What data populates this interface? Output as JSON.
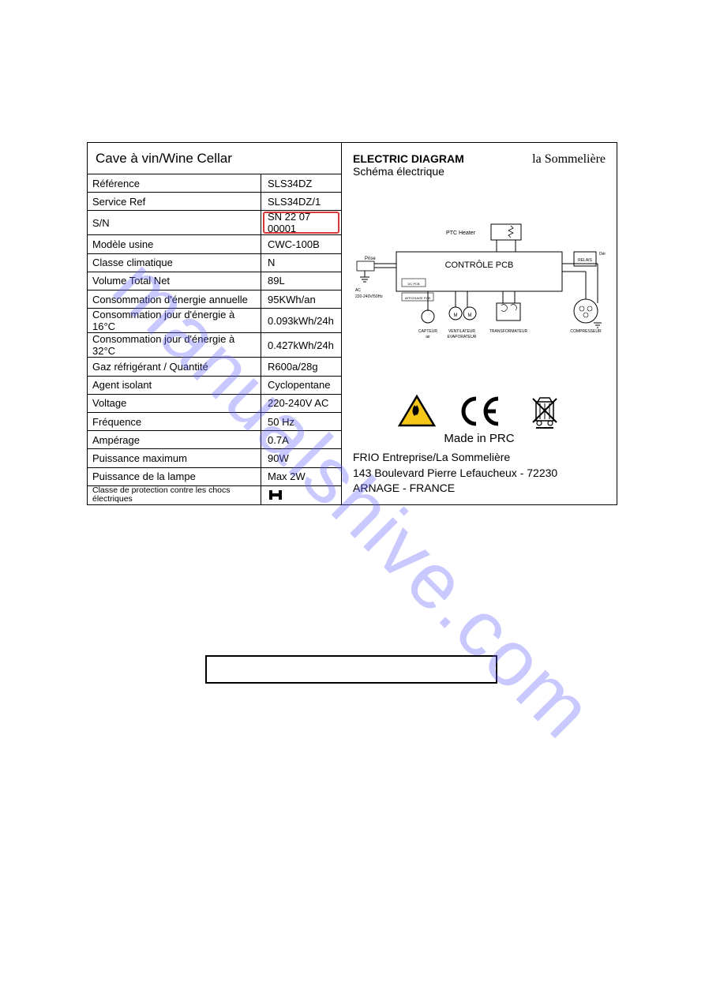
{
  "watermark": "manualshive.com",
  "plate": {
    "title": "Cave à vin/Wine  Cellar",
    "specs": [
      {
        "label": "Référence",
        "value": "SLS34DZ"
      },
      {
        "label": "Service Ref",
        "value": "SLS34DZ/1"
      },
      {
        "label": "S/N",
        "value": "SN  22  07  00001",
        "highlight": true
      },
      {
        "label": "Modèle usine",
        "value": "CWC-100B"
      },
      {
        "label": "Classe climatique",
        "value": "N"
      },
      {
        "label": "Volume Total Net",
        "value": "89L"
      },
      {
        "label": "Consommation d'énergie annuelle",
        "value": "95KWh/an"
      },
      {
        "label": "Consommation jour d'énergie à 16°C",
        "value": "0.093kWh/24h"
      },
      {
        "label": "Consommation jour d'énergie à 32°C",
        "value": "0.427kWh/24h"
      },
      {
        "label": "Gaz réfrigérant / Quantité",
        "value": "R600a/28g"
      },
      {
        "label": "Agent isolant",
        "value": "Cyclopentane"
      },
      {
        "label": "Voltage",
        "value": "220-240V AC"
      },
      {
        "label": "Fréquence",
        "value": "50 Hz"
      },
      {
        "label": "Ampérage",
        "value": "0.7A"
      },
      {
        "label": "Puissance maximum",
        "value": "90W"
      },
      {
        "label": "Puissance de la lampe",
        "value": "Max 2W"
      },
      {
        "label": "Classe de protection contre les chocs électriques",
        "value": "",
        "glyph": true,
        "smallLabel": true
      }
    ]
  },
  "diagram": {
    "titleBold": "ELECTRIC DIAGRAM",
    "titleSub": "Schéma électrique",
    "brand": "la Sommelière",
    "pcbLabel": "CONTRÔLE  PCB",
    "ptcLabel": "PTC Heater",
    "leftLabel1": "Prise",
    "leftLabel2": "AC",
    "leftLabel3": "220-240V/50Hz",
    "bottomLabels": [
      "CAPTEUR\nair",
      "VENTILATEUR\nEVAPORATEUR",
      "TRANSFORMATEUR",
      "COMPRESSEUR"
    ],
    "relais": "RELAIS",
    "demarreur": "Démarreur"
  },
  "icons": {
    "warningColor": "#f5c518",
    "warningBorder": "#000"
  },
  "madeIn": "Made in PRC",
  "address": {
    "line1": "FRIO Entreprise/La Sommelière",
    "line2": "143 Boulevard Pierre Lefaucheux - 72230",
    "line3": "ARNAGE - FRANCE"
  }
}
